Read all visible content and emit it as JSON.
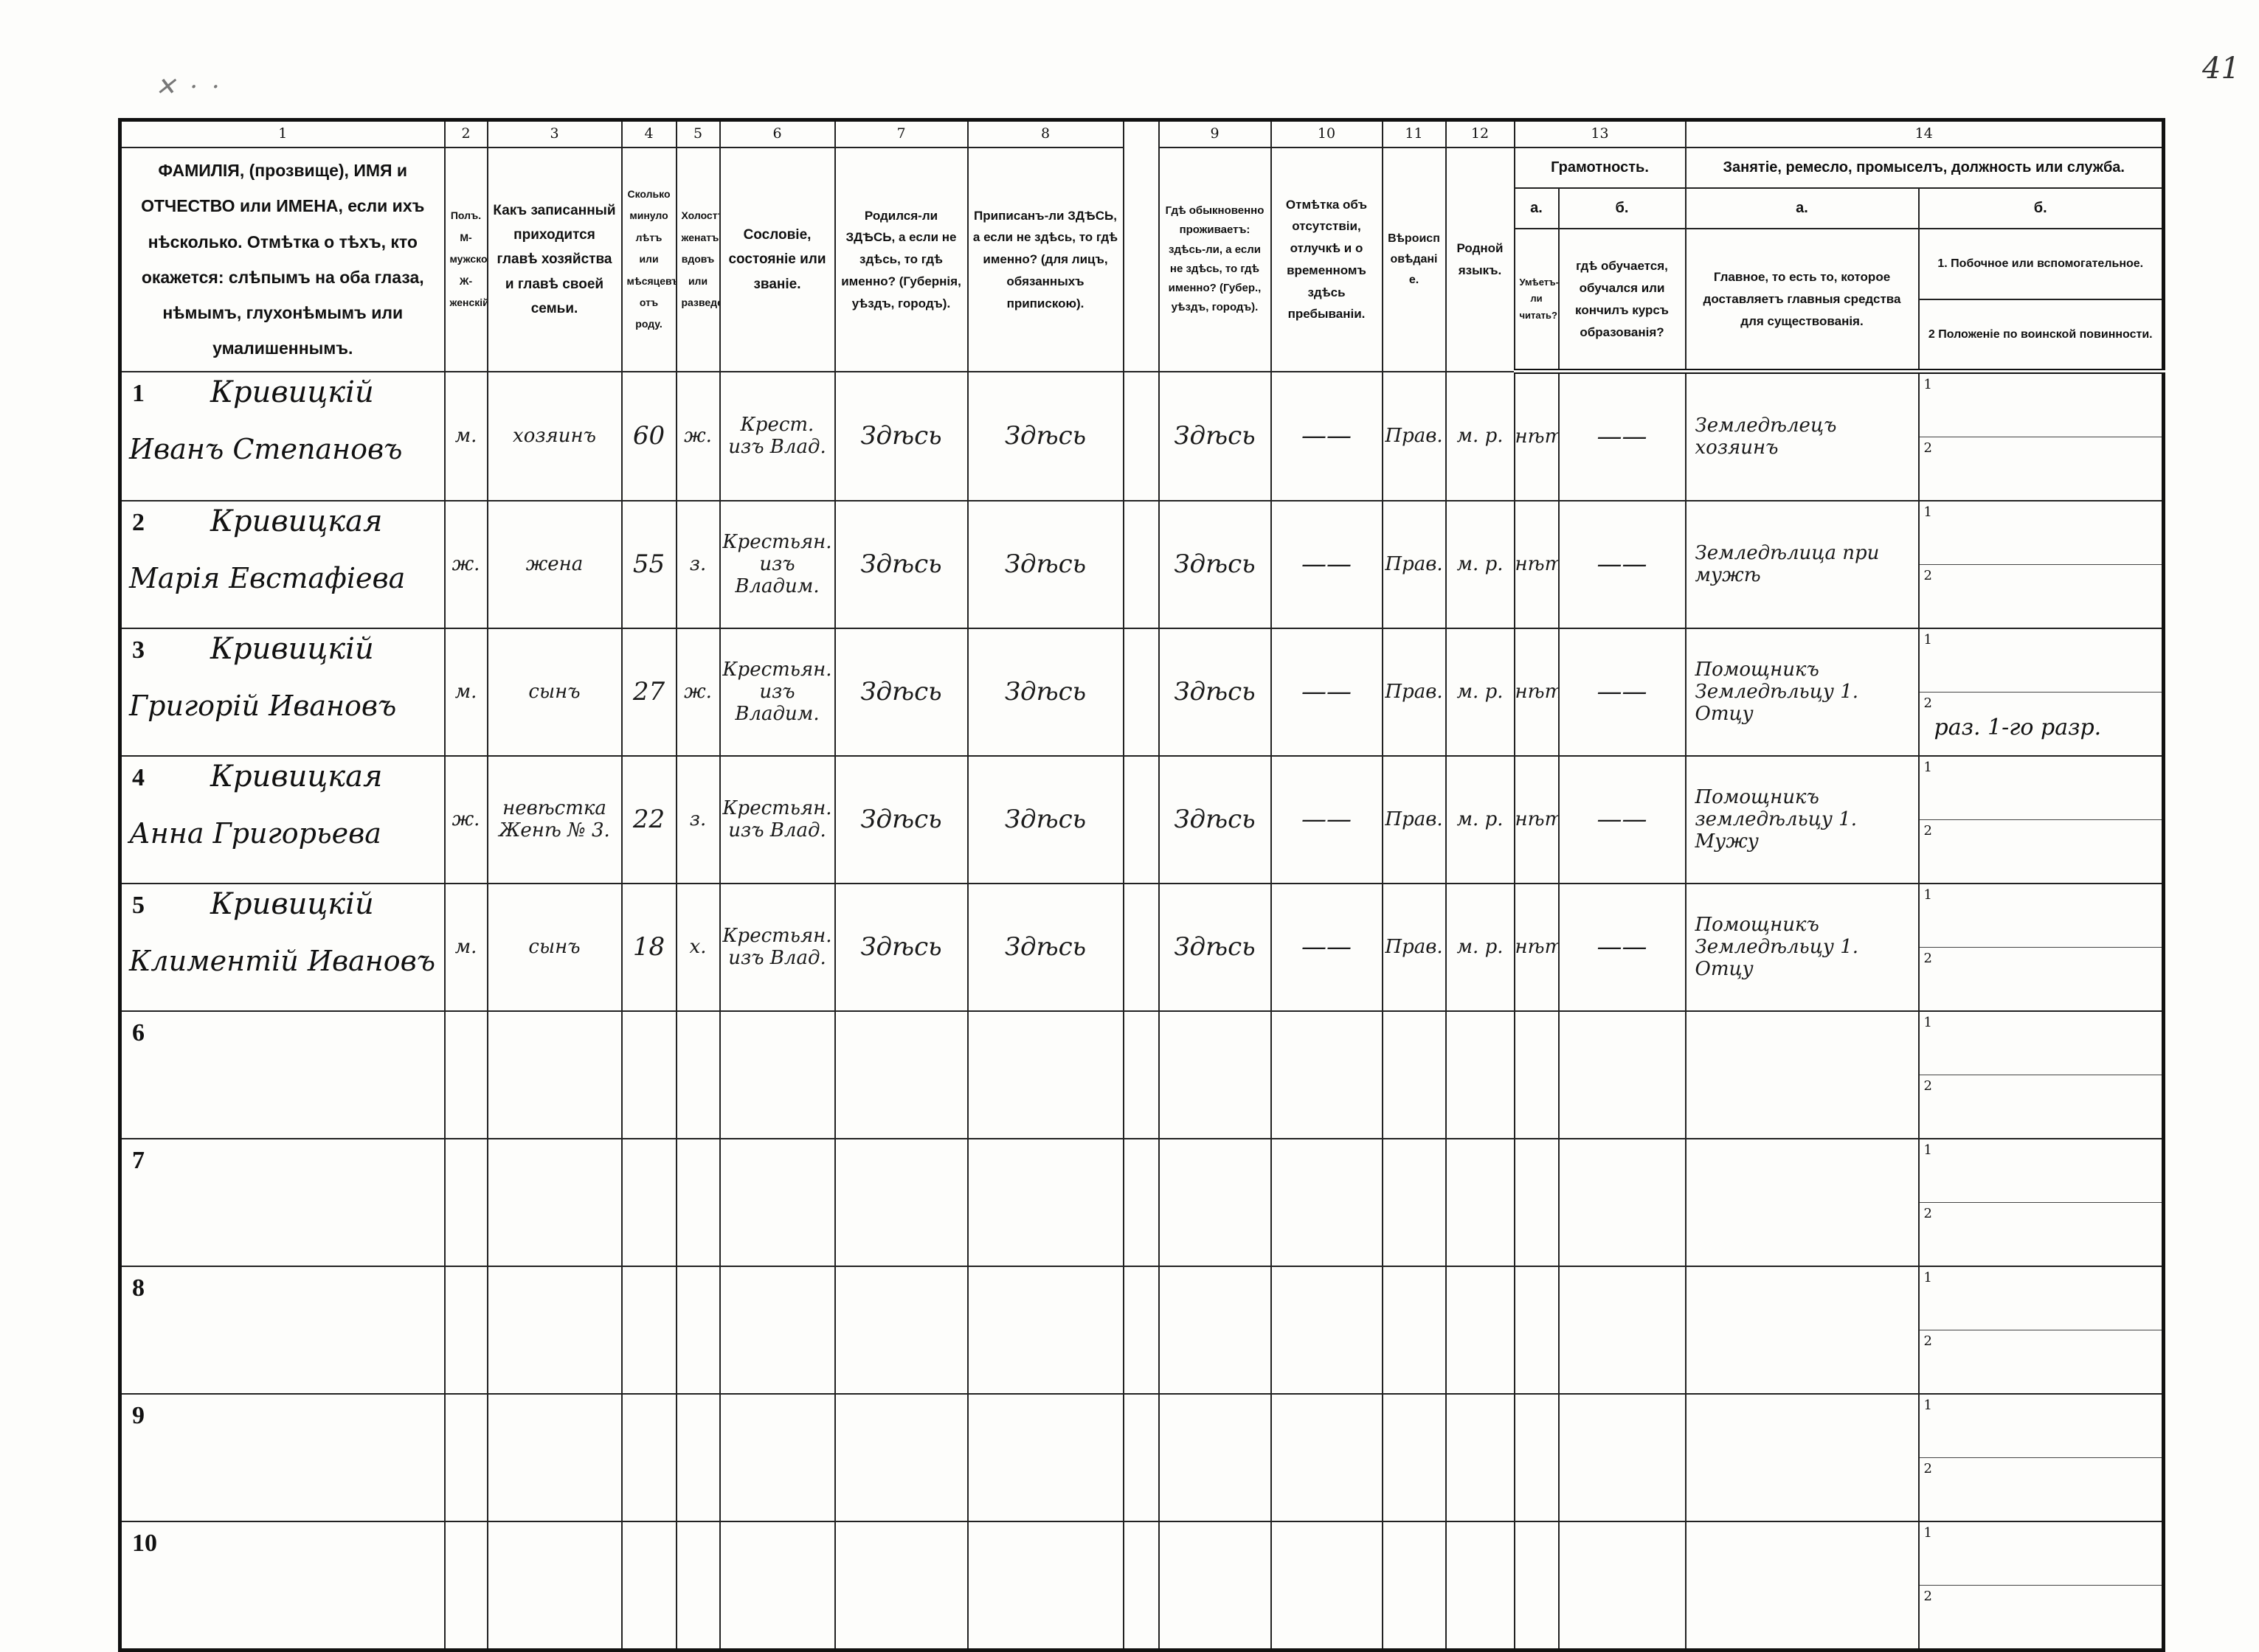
{
  "page_number": "41",
  "header": {
    "columns": [
      {
        "no": "1",
        "text": "ФАМИЛІЯ, (прозвище), ИМЯ и ОТЧЕСТВО или ИМЕНА, если ихъ нѣсколько. Отмѣтка о тѣхъ, кто окажется: слѣпымъ на оба глаза, нѣмымъ, глухонѣмымъ или умалишеннымъ."
      },
      {
        "no": "2",
        "text": "Полъ. М-мужской. Ж-женскій."
      },
      {
        "no": "3",
        "text": "Какъ записанный приходится главѣ хозяйства и главѣ своей семьи."
      },
      {
        "no": "4",
        "text": "Сколько минуло лѣтъ или мѣсяцевъ отъ роду."
      },
      {
        "no": "5",
        "text": "Холостъ, женатъ, вдовъ или разведенъ."
      },
      {
        "no": "6",
        "text": "Сословіе, состояніе или званіе."
      },
      {
        "no": "7",
        "text": "Родился-ли ЗДѢСЬ, а если не здѣсь, то гдѣ именно? (Губернія, уѣздъ, городъ)."
      },
      {
        "no": "8",
        "text": "Приписанъ-ли ЗДѢСЬ, а если не здѣсь, то гдѣ именно? (для лицъ, обязанныхъ припискою)."
      },
      {
        "no": "9",
        "text": "Гдѣ обыкновенно проживаетъ: здѣсь-ли, а если не здѣсь, то гдѣ именно? (Губер., уѣздъ, городъ)."
      },
      {
        "no": "10",
        "text": "Отмѣтка объ отсутствіи, отлучкѣ и о временномъ здѣсь пребываніи."
      },
      {
        "no": "11",
        "text": "Вѣроисповѣданіе."
      },
      {
        "no": "12",
        "text": "Родной языкъ."
      }
    ],
    "col13": {
      "no": "13",
      "title": "Грамотность.",
      "a_label": "а.",
      "a_text": "Умѣетъ-ли читать?",
      "b_label": "б.",
      "b_text": "гдѣ обучается, обучался или кончилъ курсъ образованія?"
    },
    "col14": {
      "no": "14",
      "title": "Занятіе, ремесло, промыселъ, должность или служба.",
      "a_label": "а.",
      "a_text": "Главное, то есть то, которое доставляетъ главныя средства для существованія.",
      "b_label": "б.",
      "b_text_1": "1. Побочное или вспомогательное.",
      "b_text_2": "2 Положеніе по воинской повинности."
    }
  },
  "rows": [
    {
      "no": "1",
      "surname": "Кривицкій",
      "given": "Иванъ Степановъ",
      "sex": "м.",
      "relation": "хозяинъ",
      "age": "60",
      "marital": "ж.",
      "estate": "Крест. изъ Влад.",
      "born": "Здѣсь",
      "registered": "Здѣсь",
      "resides": "Здѣсь",
      "absence": "——",
      "religion": "Прав.",
      "language": "м. р.",
      "literate": "нѣтъ",
      "education": "——",
      "occupation": "Земледѣлецъ хозяинъ",
      "secondary_1": "",
      "secondary_2": ""
    },
    {
      "no": "2",
      "surname": "Кривицкая",
      "given": "Марія Евстафіева",
      "sex": "ж.",
      "relation": "жена",
      "age": "55",
      "marital": "з.",
      "estate": "Крестьян. изъ Владим.",
      "born": "Здѣсь",
      "registered": "Здѣсь",
      "resides": "Здѣсь",
      "absence": "——",
      "religion": "Прав.",
      "language": "м. р.",
      "literate": "нѣтъ",
      "education": "——",
      "occupation": "Земледѣлица при мужѣ",
      "secondary_1": "",
      "secondary_2": ""
    },
    {
      "no": "3",
      "surname": "Кривицкій",
      "given": "Григорій Ивановъ",
      "sex": "м.",
      "relation": "сынъ",
      "age": "27",
      "marital": "ж.",
      "estate": "Крестьян. изъ Владим.",
      "born": "Здѣсь",
      "registered": "Здѣсь",
      "resides": "Здѣсь",
      "absence": "——",
      "religion": "Прав.",
      "language": "м. р.",
      "literate": "нѣтъ",
      "education": "——",
      "occupation": "Помощникъ Земледѣльцу 1. Отцу",
      "secondary_1": "",
      "secondary_2": "раз. 1-го разр."
    },
    {
      "no": "4",
      "surname": "Кривицкая",
      "given": "Анна Григорьева",
      "sex": "ж.",
      "relation": "невѣстка Женѣ № 3.",
      "age": "22",
      "marital": "з.",
      "estate": "Крестьян. изъ Влад.",
      "born": "Здѣсь",
      "registered": "Здѣсь",
      "resides": "Здѣсь",
      "absence": "——",
      "religion": "Прав.",
      "language": "м. р.",
      "literate": "нѣтъ",
      "education": "——",
      "occupation": "Помощникъ земледѣльцу 1. Мужу",
      "secondary_1": "",
      "secondary_2": ""
    },
    {
      "no": "5",
      "surname": "Кривицкій",
      "given": "Климентій Ивановъ",
      "sex": "м.",
      "relation": "сынъ",
      "age": "18",
      "marital": "х.",
      "estate": "Крестьян. изъ Влад.",
      "born": "Здѣсь",
      "registered": "Здѣсь",
      "resides": "Здѣсь",
      "absence": "——",
      "religion": "Прав.",
      "language": "м. р.",
      "literate": "нѣтъ",
      "education": "——",
      "occupation": "Помощникъ Земледѣльцу 1. Отцу",
      "secondary_1": "",
      "secondary_2": ""
    },
    {
      "no": "6"
    },
    {
      "no": "7"
    },
    {
      "no": "8"
    },
    {
      "no": "9"
    },
    {
      "no": "10"
    }
  ],
  "sub_labels": [
    "1",
    "2"
  ]
}
